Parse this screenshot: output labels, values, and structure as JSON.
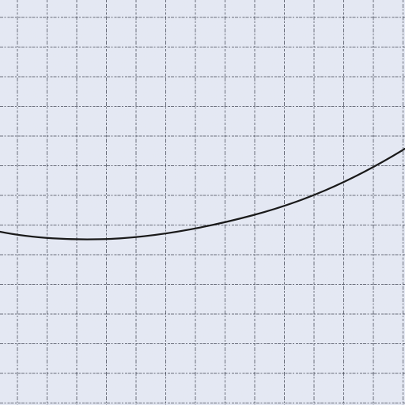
{
  "paper": {
    "background": "#e4e8f3",
    "grid_color": "#1f2330",
    "grid_style": "dashed square grid"
  },
  "curve": {
    "color": "#1a1a1a",
    "shape": "smooth curve with a shallow minimum, rising toward the right"
  }
}
